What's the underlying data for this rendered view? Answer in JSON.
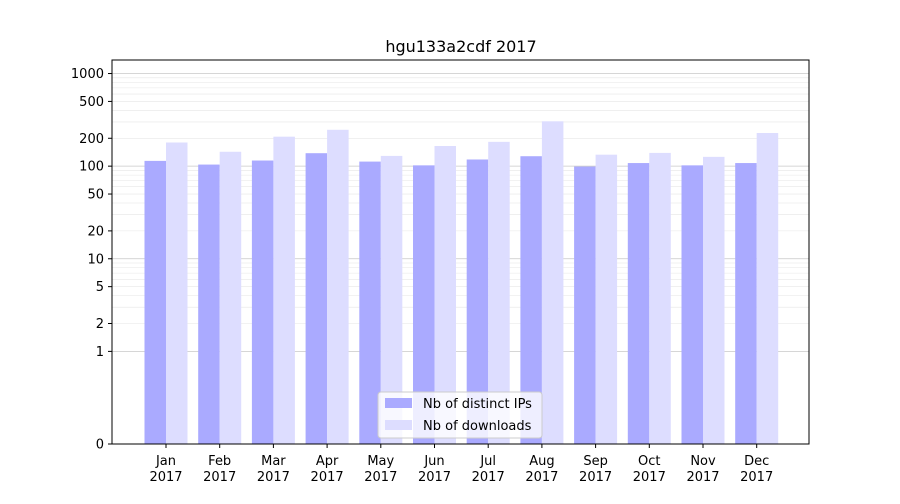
{
  "chart_data": {
    "type": "bar",
    "title": "hgu133a2cdf 2017",
    "xlabel": "",
    "ylabel": "",
    "y_scale": "symlog",
    "y_ticks": [
      0,
      1,
      2,
      5,
      10,
      20,
      50,
      100,
      200,
      500,
      1000
    ],
    "y_tick_labels": [
      "0",
      "1",
      "2",
      "5",
      "10",
      "20",
      "50",
      "100",
      "200",
      "500",
      "1000"
    ],
    "ylim": [
      0,
      1400
    ],
    "grid": true,
    "legend_position": "lower center",
    "categories": [
      "Jan\n2017",
      "Feb\n2017",
      "Mar\n2017",
      "Apr\n2017",
      "May\n2017",
      "Jun\n2017",
      "Jul\n2017",
      "Aug\n2017",
      "Sep\n2017",
      "Oct\n2017",
      "Nov\n2017",
      "Dec\n2017"
    ],
    "series": [
      {
        "name": "Nb of distinct IPs",
        "color": "#aaaaff",
        "values": [
          114,
          104,
          115,
          138,
          112,
          102,
          118,
          128,
          99,
          108,
          102,
          108
        ]
      },
      {
        "name": "Nb of downloads",
        "color": "#ddddff",
        "values": [
          180,
          143,
          208,
          247,
          129,
          165,
          183,
          305,
          133,
          139,
          126,
          228
        ]
      }
    ]
  }
}
